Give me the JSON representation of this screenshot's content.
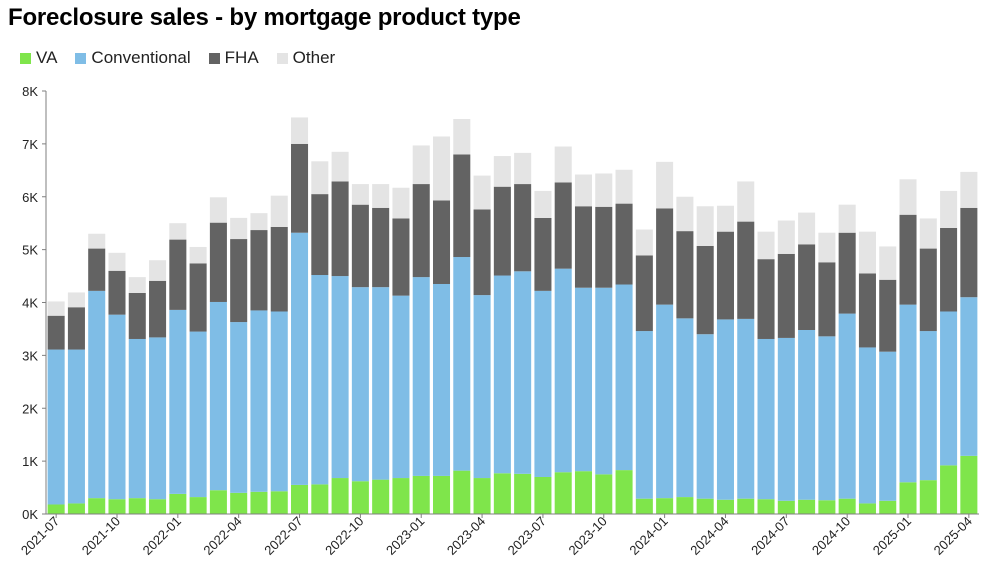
{
  "chart_data": {
    "type": "bar",
    "stacked": true,
    "title": "Foreclosure sales - by mortgage product type",
    "ylim": [
      0,
      8000
    ],
    "yticks": [
      0,
      1000,
      2000,
      3000,
      4000,
      5000,
      6000,
      7000,
      8000
    ],
    "ytick_labels": [
      "0K",
      "1K",
      "2K",
      "3K",
      "4K",
      "5K",
      "6K",
      "7K",
      "8K"
    ],
    "legend_position": "top-left",
    "grid": false,
    "categories": [
      "2021-07",
      "2021-08",
      "2021-09",
      "2021-10",
      "2021-11",
      "2021-12",
      "2022-01",
      "2022-02",
      "2022-03",
      "2022-04",
      "2022-05",
      "2022-06",
      "2022-07",
      "2022-08",
      "2022-09",
      "2022-10",
      "2022-11",
      "2022-12",
      "2023-01",
      "2023-02",
      "2023-03",
      "2023-04",
      "2023-05",
      "2023-06",
      "2023-07",
      "2023-08",
      "2023-09",
      "2023-10",
      "2023-11",
      "2023-12",
      "2024-01",
      "2024-02",
      "2024-03",
      "2024-04",
      "2024-05",
      "2024-06",
      "2024-07",
      "2024-08",
      "2024-09",
      "2024-10",
      "2024-11",
      "2024-12",
      "2025-01",
      "2025-02",
      "2025-03",
      "2025-04"
    ],
    "xtick_labels": [
      "2021-07",
      "2021-10",
      "2022-01",
      "2022-04",
      "2022-07",
      "2022-10",
      "2023-01",
      "2023-04",
      "2023-07",
      "2023-10",
      "2024-01",
      "2024-04",
      "2024-07",
      "2024-10",
      "2025-01",
      "2025-04"
    ],
    "xtick_every": 3,
    "series": [
      {
        "name": "VA",
        "color": "#7fe54b",
        "values": [
          180,
          200,
          300,
          280,
          300,
          280,
          380,
          320,
          450,
          400,
          420,
          430,
          550,
          560,
          680,
          620,
          650,
          680,
          720,
          720,
          820,
          680,
          770,
          760,
          700,
          790,
          810,
          750,
          830,
          290,
          300,
          320,
          290,
          270,
          290,
          280,
          250,
          270,
          260,
          290,
          200,
          250,
          600,
          640,
          920,
          1100
        ]
      },
      {
        "name": "Conventional",
        "color": "#7fbde6",
        "values": [
          2930,
          2910,
          3920,
          3490,
          3010,
          3060,
          3480,
          3130,
          3560,
          3230,
          3430,
          3400,
          4770,
          3960,
          3820,
          3670,
          3640,
          3450,
          3760,
          3630,
          4040,
          3460,
          3740,
          3830,
          3520,
          3850,
          3470,
          3530,
          3510,
          3170,
          3660,
          3380,
          3110,
          3410,
          3400,
          3030,
          3080,
          3210,
          3100,
          3500,
          2950,
          2820,
          3360,
          2820,
          2910,
          3000
        ]
      },
      {
        "name": "FHA",
        "color": "#636363",
        "values": [
          640,
          800,
          800,
          830,
          870,
          1070,
          1330,
          1290,
          1500,
          1570,
          1520,
          1600,
          1680,
          1530,
          1790,
          1560,
          1500,
          1460,
          1760,
          1580,
          1940,
          1620,
          1680,
          1650,
          1380,
          1630,
          1540,
          1530,
          1530,
          1430,
          1820,
          1650,
          1670,
          1660,
          1840,
          1510,
          1590,
          1620,
          1400,
          1530,
          1400,
          1360,
          1700,
          1560,
          1580,
          1690
        ]
      },
      {
        "name": "Other",
        "color": "#e4e4e4",
        "values": [
          270,
          280,
          280,
          340,
          300,
          390,
          310,
          310,
          480,
          400,
          320,
          590,
          500,
          620,
          560,
          390,
          450,
          580,
          730,
          1210,
          670,
          640,
          580,
          590,
          510,
          680,
          600,
          630,
          640,
          490,
          880,
          650,
          750,
          490,
          760,
          520,
          630,
          600,
          560,
          530,
          790,
          630,
          670,
          570,
          700,
          680
        ]
      }
    ]
  }
}
